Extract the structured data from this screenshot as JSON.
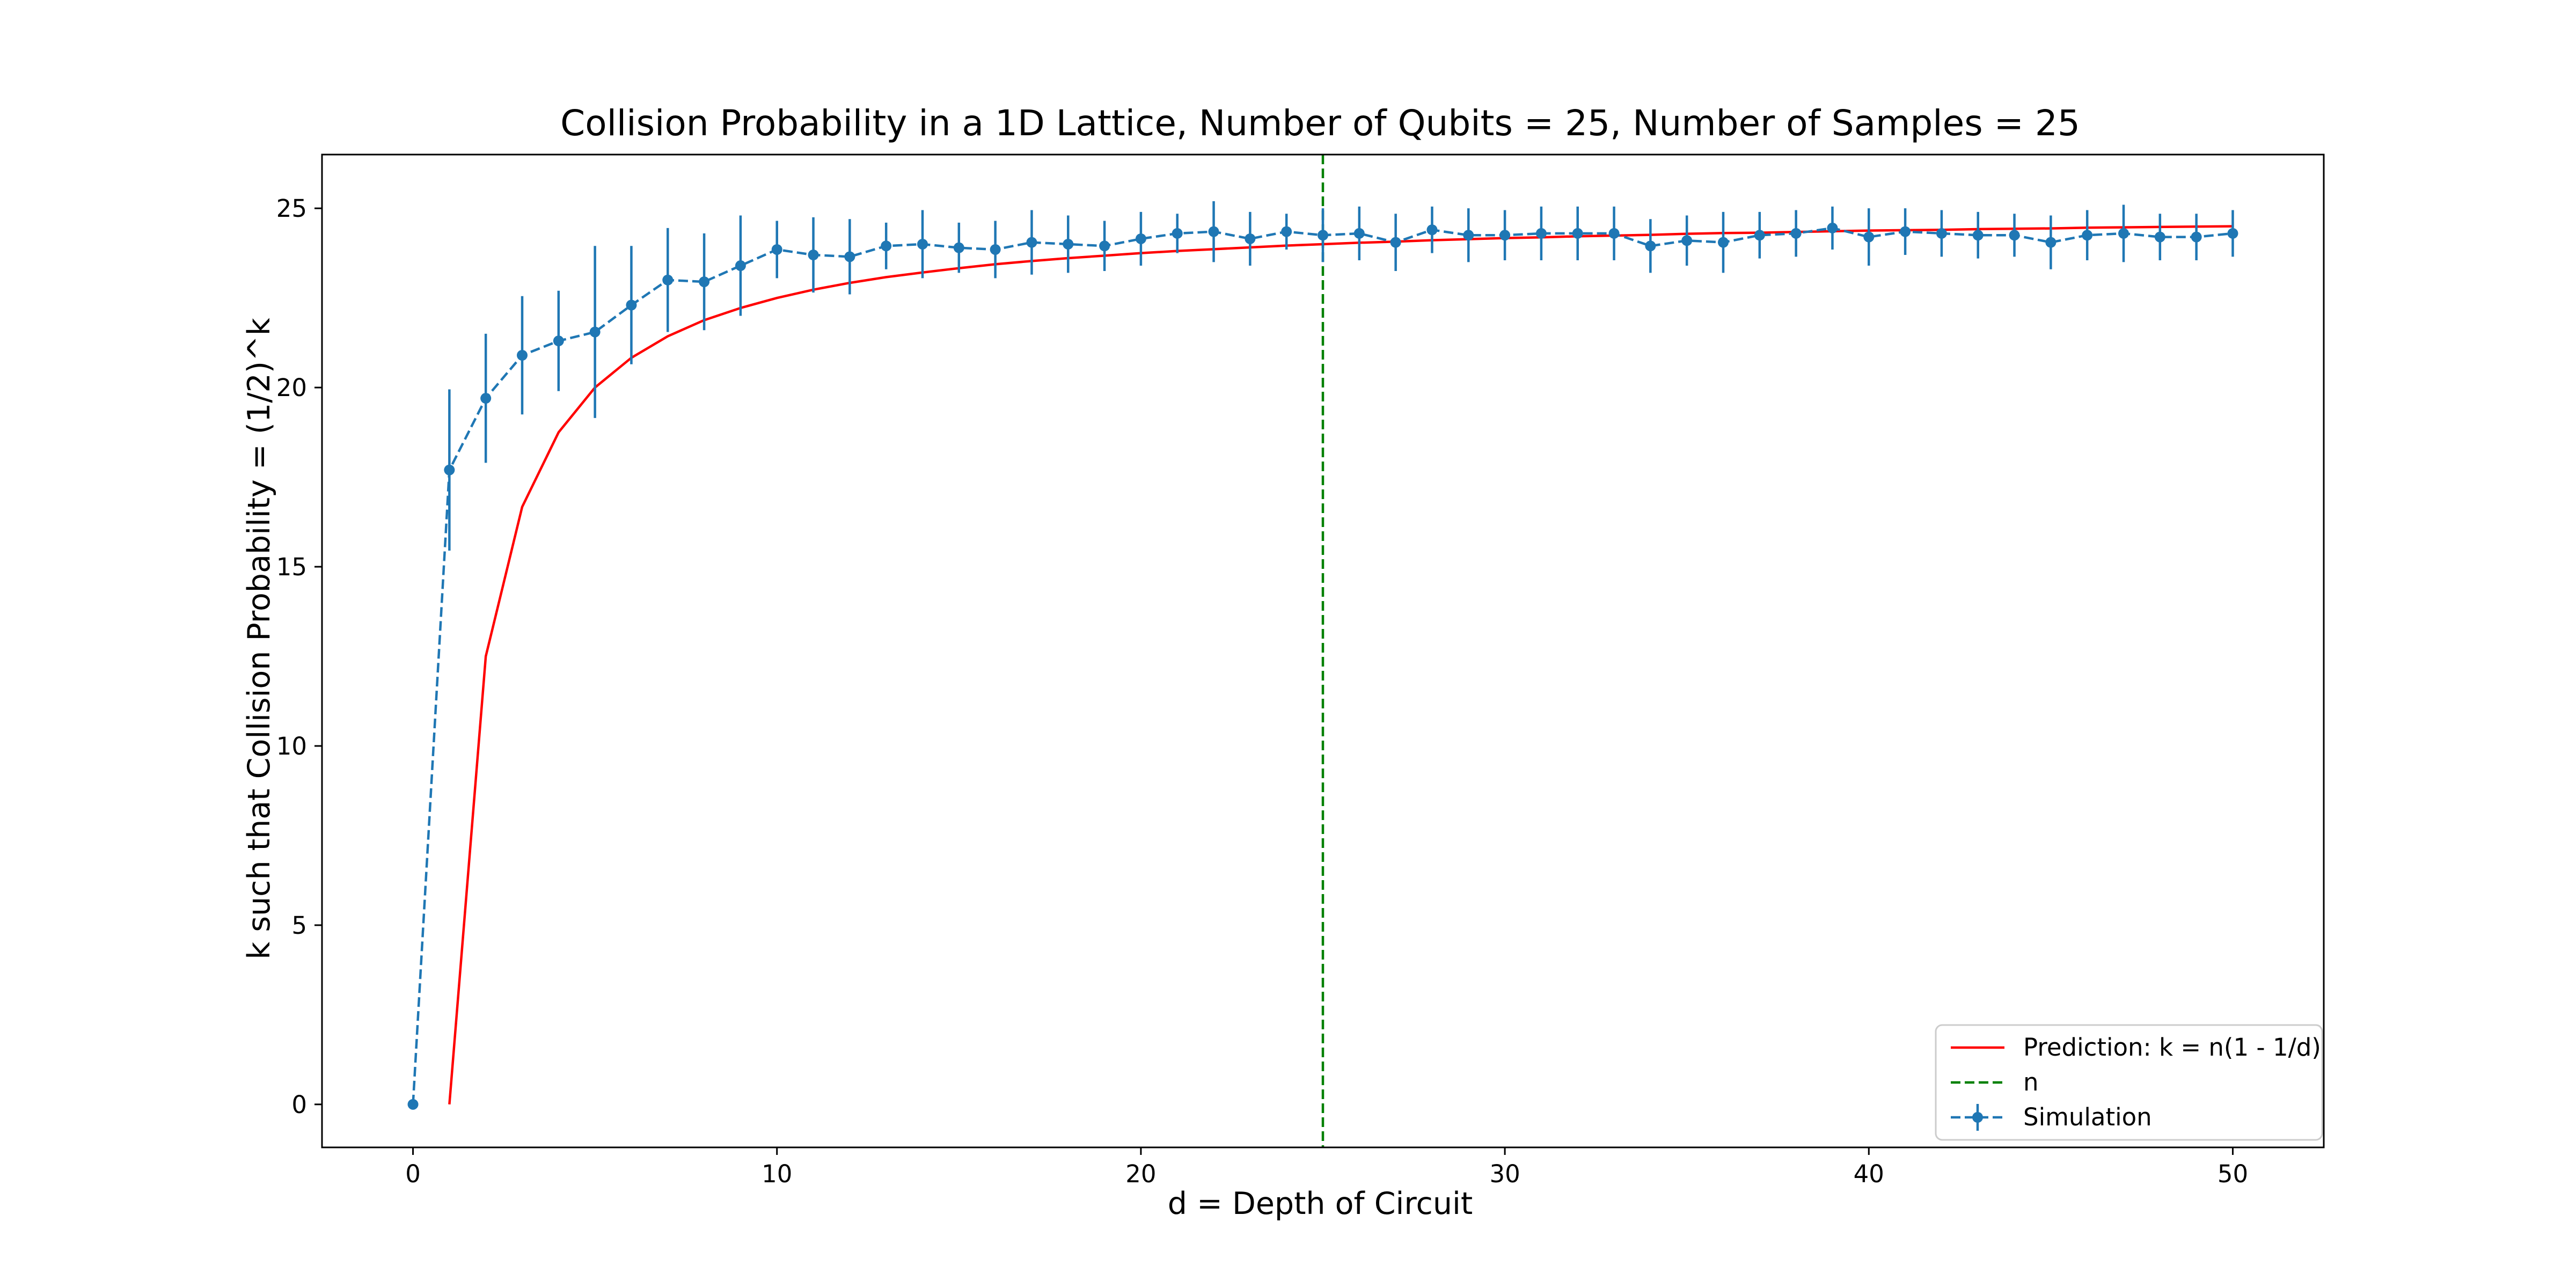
{
  "chart_data": {
    "type": "line",
    "title": "Collision Probability in a 1D Lattice, Number of Qubits = 25, Number of Samples = 25",
    "xlabel": "d = Depth of Circuit",
    "ylabel": "k such that Collision Probability = (1/2)^k",
    "xlim": [
      -2.5,
      52.5
    ],
    "ylim": [
      -1.2,
      26.5
    ],
    "xticks": [
      0,
      10,
      20,
      30,
      40,
      50
    ],
    "yticks": [
      0,
      5,
      10,
      15,
      20,
      25
    ],
    "grid": false,
    "legend_position": "lower-right",
    "vertical_line": {
      "name": "n",
      "x": 25,
      "color": "#008000",
      "style": "dashed"
    },
    "prediction": {
      "name": "Prediction: k = n(1 - 1/d)",
      "color": "#ff0000",
      "x": [
        1,
        2,
        3,
        4,
        5,
        6,
        7,
        8,
        9,
        10,
        11,
        12,
        13,
        14,
        15,
        16,
        17,
        18,
        19,
        20,
        21,
        22,
        23,
        24,
        25,
        26,
        27,
        28,
        29,
        30,
        31,
        32,
        33,
        34,
        35,
        36,
        37,
        38,
        39,
        40,
        41,
        42,
        43,
        44,
        45,
        46,
        47,
        48,
        49,
        50
      ],
      "y": [
        0,
        12.5,
        16.67,
        18.75,
        20,
        20.83,
        21.43,
        21.88,
        22.22,
        22.5,
        22.73,
        22.92,
        23.08,
        23.21,
        23.33,
        23.44,
        23.53,
        23.61,
        23.68,
        23.75,
        23.81,
        23.86,
        23.91,
        23.96,
        24,
        24.04,
        24.07,
        24.11,
        24.14,
        24.17,
        24.19,
        24.22,
        24.24,
        24.26,
        24.29,
        24.31,
        24.32,
        24.34,
        24.36,
        24.38,
        24.39,
        24.4,
        24.42,
        24.43,
        24.44,
        24.46,
        24.47,
        24.48,
        24.49,
        24.5
      ]
    },
    "simulation": {
      "name": "Simulation",
      "color": "#1f77b4",
      "x": [
        0,
        1,
        2,
        3,
        4,
        5,
        6,
        7,
        8,
        9,
        10,
        11,
        12,
        13,
        14,
        15,
        16,
        17,
        18,
        19,
        20,
        21,
        22,
        23,
        24,
        25,
        26,
        27,
        28,
        29,
        30,
        31,
        32,
        33,
        34,
        35,
        36,
        37,
        38,
        39,
        40,
        41,
        42,
        43,
        44,
        45,
        46,
        47,
        48,
        49,
        50
      ],
      "y": [
        0,
        17.7,
        19.7,
        20.9,
        21.3,
        21.55,
        22.3,
        23.0,
        22.95,
        23.4,
        23.85,
        23.7,
        23.65,
        23.95,
        24.0,
        23.9,
        23.85,
        24.05,
        24.0,
        23.95,
        24.15,
        24.3,
        24.35,
        24.15,
        24.35,
        24.25,
        24.3,
        24.05,
        24.4,
        24.25,
        24.25,
        24.3,
        24.3,
        24.3,
        23.95,
        24.1,
        24.05,
        24.25,
        24.3,
        24.45,
        24.2,
        24.35,
        24.3,
        24.25,
        24.25,
        24.05,
        24.25,
        24.3,
        24.2,
        24.2,
        24.3
      ],
      "yerr": [
        0,
        2.25,
        1.8,
        1.65,
        1.4,
        2.4,
        1.65,
        1.45,
        1.35,
        1.4,
        0.8,
        1.05,
        1.05,
        0.65,
        0.95,
        0.7,
        0.8,
        0.9,
        0.8,
        0.7,
        0.75,
        0.55,
        0.85,
        0.75,
        0.5,
        0.75,
        0.75,
        0.8,
        0.65,
        0.75,
        0.7,
        0.75,
        0.75,
        0.75,
        0.75,
        0.7,
        0.85,
        0.65,
        0.65,
        0.6,
        0.8,
        0.65,
        0.65,
        0.65,
        0.6,
        0.75,
        0.7,
        0.8,
        0.65,
        0.65,
        0.65
      ]
    }
  }
}
